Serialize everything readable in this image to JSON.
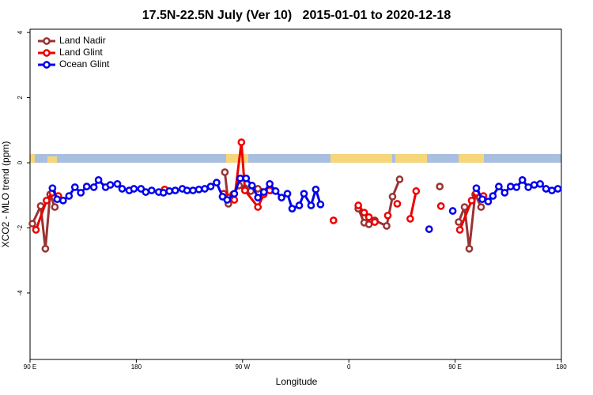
{
  "chart_data": {
    "type": "line",
    "title": "17.5N-22.5N July (Ver 10)   2015-01-01 to 2020-12-18",
    "x_label": "Longitude",
    "y_label": "XCO2 - MLO trend (ppm)",
    "xlim": [
      90,
      540
    ],
    "ylim": [
      -6.04,
      4.1
    ],
    "xticks": [
      {
        "value": 90,
        "label": "90 E"
      },
      180,
      {
        "value": 270,
        "label": "90 W"
      },
      {
        "value": 360,
        "label": "0"
      },
      {
        "value": 450,
        "label": "90 E"
      },
      {
        "value": 540,
        "label": "180"
      }
    ],
    "yticks": [
      -4,
      -2,
      0,
      2,
      4
    ],
    "legend": "top-left",
    "series": [
      {
        "name": "Land Nadir",
        "color": "#993333",
        "x": [
          92,
          99,
          103,
          107,
          111,
          200,
          255,
          258,
          262,
          267,
          272,
          277,
          283,
          294,
          380,
          368,
          373,
          377,
          382,
          392,
          397,
          403,
          420,
          437,
          445,
          453,
          458,
          462,
          467,
          472
        ],
        "values": [
          -1.87,
          -1.33,
          -2.64,
          -0.97,
          -1.36,
          null,
          -0.29,
          -1.26,
          -0.97,
          -0.7,
          -0.78,
          -0.87,
          -0.8,
          -0.85,
          null,
          -1.41,
          -1.84,
          -1.89,
          -1.77,
          -1.94,
          -1.04,
          -0.51,
          null,
          -0.73,
          null,
          -1.82,
          -1.36,
          -2.64,
          -0.97,
          -1.36
        ]
      },
      {
        "name": "Land Glint",
        "color": "#ee0000",
        "x": [
          95,
          104,
          109,
          114,
          150,
          204,
          240,
          254,
          258,
          263,
          269,
          272,
          283,
          288,
          293,
          330,
          347,
          360,
          368,
          373,
          377,
          382,
          387,
          393,
          397,
          401,
          407,
          412,
          417,
          430,
          438,
          445,
          454,
          464,
          468,
          474
        ],
        "values": [
          -2.06,
          -1.16,
          -0.92,
          -1.02,
          null,
          -0.82,
          null,
          -0.95,
          -1.07,
          -1.14,
          0.63,
          -0.85,
          -1.36,
          -0.97,
          -0.85,
          null,
          -1.77,
          null,
          -1.31,
          -1.53,
          -1.67,
          -1.82,
          null,
          -1.62,
          null,
          -1.26,
          null,
          -1.72,
          -0.87,
          null,
          -1.33,
          null,
          -2.06,
          -1.16,
          -0.92,
          -1.02
        ]
      },
      {
        "name": "Ocean Glint",
        "color": "#0000ee",
        "x": [
          109,
          113,
          118,
          123,
          128,
          133,
          138,
          144,
          148,
          154,
          158,
          164,
          168,
          174,
          178,
          184,
          188,
          193,
          199,
          203,
          208,
          213,
          219,
          223,
          228,
          233,
          238,
          243,
          248,
          253,
          257,
          263,
          268,
          273,
          278,
          283,
          288,
          293,
          298,
          303,
          308,
          312,
          318,
          322,
          328,
          332,
          336,
          400,
          428,
          440,
          448,
          455,
          468,
          473,
          478,
          482,
          487,
          492,
          497,
          502,
          507,
          512,
          517,
          522,
          527,
          532,
          537
        ],
        "values": [
          -0.78,
          -1.12,
          -1.16,
          -1.02,
          -0.75,
          -0.92,
          -0.73,
          -0.75,
          -0.53,
          -0.75,
          -0.68,
          -0.65,
          -0.8,
          -0.85,
          -0.8,
          -0.8,
          -0.9,
          -0.85,
          -0.9,
          -0.92,
          -0.87,
          -0.85,
          -0.8,
          -0.85,
          -0.85,
          -0.82,
          -0.8,
          -0.73,
          -0.61,
          -1.04,
          -1.14,
          -0.95,
          -0.48,
          -0.48,
          -0.7,
          -1.07,
          -0.9,
          -0.65,
          -0.87,
          -1.07,
          -0.95,
          -1.41,
          -1.31,
          -0.95,
          -1.31,
          -0.82,
          -1.28,
          null,
          -2.04,
          null,
          -1.48,
          null,
          -0.78,
          -1.12,
          -1.19,
          -1.02,
          -0.73,
          -0.92,
          -0.73,
          -0.75,
          -0.53,
          -0.75,
          -0.68,
          -0.65,
          -0.8,
          -0.85,
          -0.8
        ]
      }
    ]
  }
}
